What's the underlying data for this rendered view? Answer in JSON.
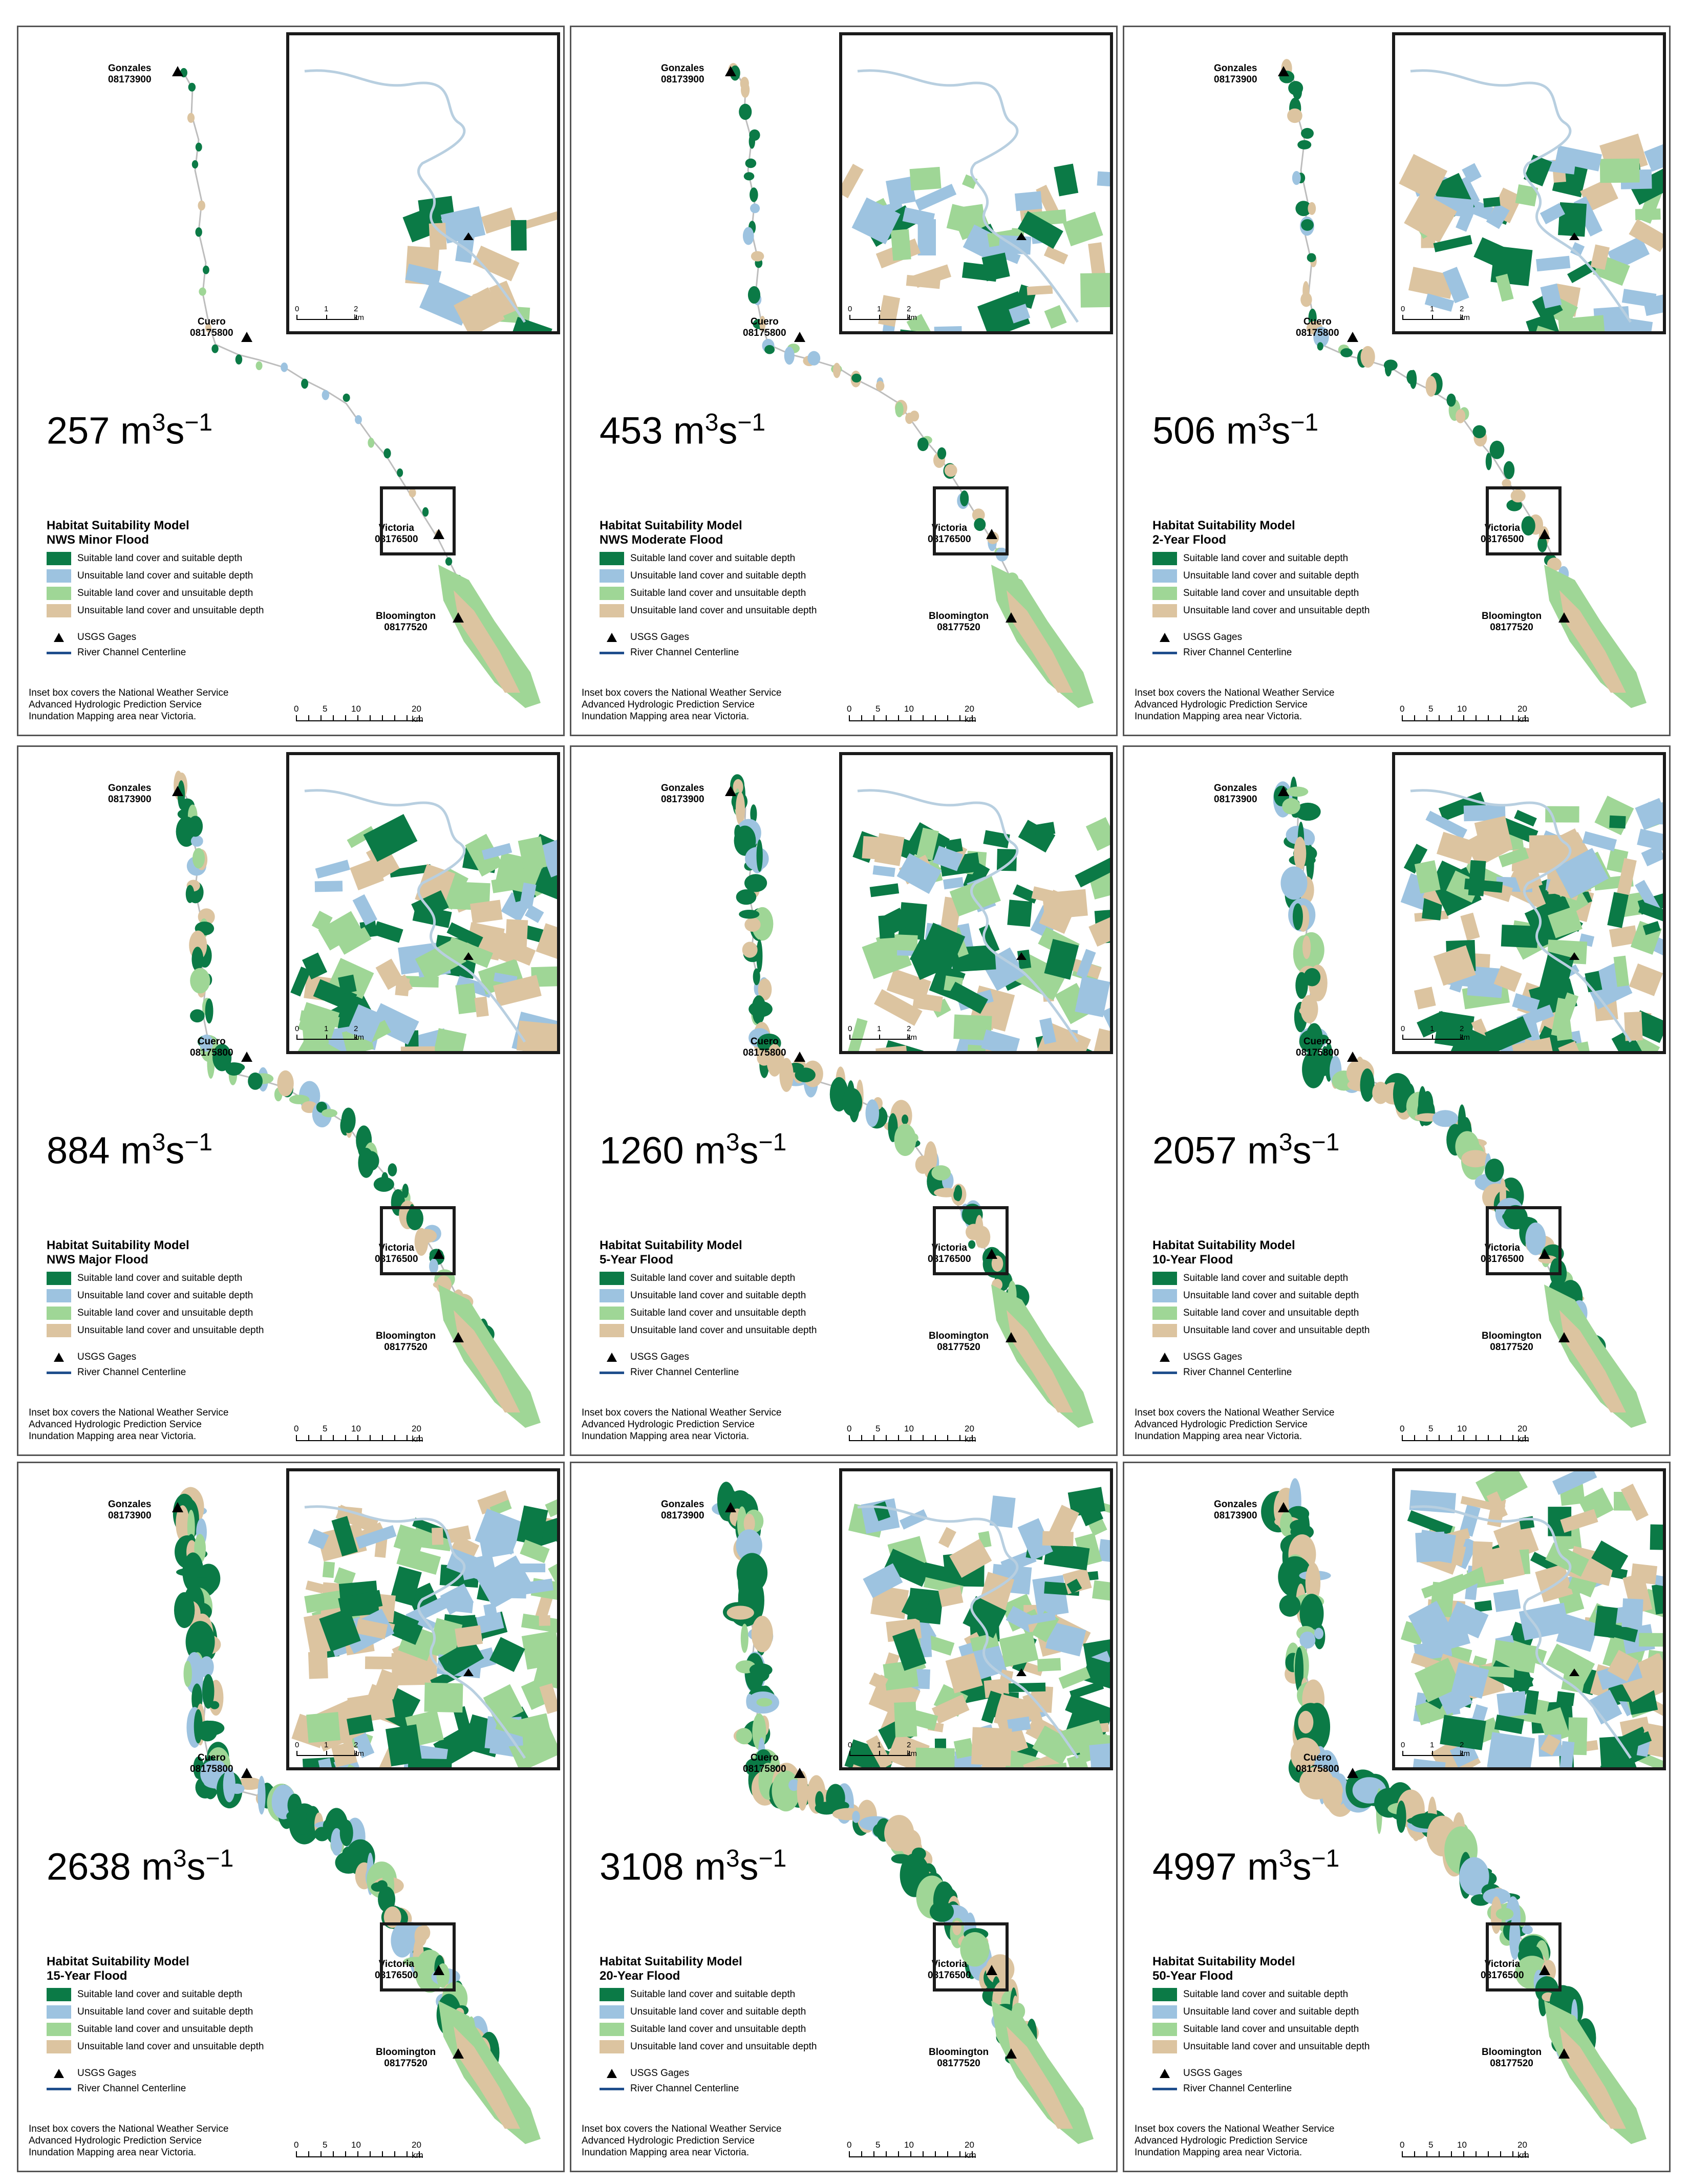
{
  "colors": {
    "suitable_suitable": "#0b7a46",
    "unsuitable_suitable": "#9dc3e0",
    "suitable_unsuitable": "#9fd696",
    "unsuitable_unsuitable": "#dcc4a0",
    "river": "#1f4e8c"
  },
  "gages": {
    "gonzales": {
      "name": "Gonzales",
      "id": "08173900"
    },
    "cuero": {
      "name": "Cuero",
      "id": "08175800"
    },
    "victoria": {
      "name": "Victoria",
      "id": "08176500"
    },
    "bloomington": {
      "name": "Bloomington",
      "id": "08177520"
    }
  },
  "legend": {
    "title": "Habitat Suitability Model",
    "items": [
      {
        "label": "Suitable land cover and suitable depth",
        "color_key": "suitable_suitable"
      },
      {
        "label": "Unsuitable land cover and suitable depth",
        "color_key": "unsuitable_suitable"
      },
      {
        "label": "Suitable land cover and unsuitable depth",
        "color_key": "suitable_unsuitable"
      },
      {
        "label": "Unsuitable land cover and unsuitable depth",
        "color_key": "unsuitable_unsuitable"
      }
    ],
    "gages_label": "USGS Gages",
    "river_label": "River Channel Centerline"
  },
  "note": [
    "Inset box covers the National Weather Service",
    "Advanced Hydrologic Prediction Service",
    "Inundation Mapping area near Victoria."
  ],
  "scale_main": {
    "ticks": [
      "0",
      "5",
      "10",
      "20 km"
    ]
  },
  "scale_inset": {
    "ticks": [
      "0",
      "1",
      "2 km"
    ]
  },
  "panels": [
    {
      "flow": "257",
      "unit": "m",
      "exp1": "3",
      "unit2": "s",
      "exp2": "−1",
      "scenario": "NWS Minor Flood",
      "level": 0.05
    },
    {
      "flow": "453",
      "unit": "m",
      "exp1": "3",
      "unit2": "s",
      "exp2": "−1",
      "scenario": "NWS Moderate Flood",
      "level": 0.25
    },
    {
      "flow": "506",
      "unit": "m",
      "exp1": "3",
      "unit2": "s",
      "exp2": "−1",
      "scenario": "2-Year Flood",
      "level": 0.35
    },
    {
      "flow": "884",
      "unit": "m",
      "exp1": "3",
      "unit2": "s",
      "exp2": "−1",
      "scenario": "NWS Major Flood",
      "level": 0.55
    },
    {
      "flow": "1260",
      "unit": "m",
      "exp1": "3",
      "unit2": "s",
      "exp2": "−1",
      "scenario": "5-Year Flood",
      "level": 0.65
    },
    {
      "flow": "2057",
      "unit": "m",
      "exp1": "3",
      "unit2": "s",
      "exp2": "−1",
      "scenario": "10-Year Flood",
      "level": 0.8
    },
    {
      "flow": "2638",
      "unit": "m",
      "exp1": "3",
      "unit2": "s",
      "exp2": "−1",
      "scenario": "15-Year Flood",
      "level": 0.88
    },
    {
      "flow": "3108",
      "unit": "m",
      "exp1": "3",
      "unit2": "s",
      "exp2": "−1",
      "scenario": "20-Year Flood",
      "level": 0.93
    },
    {
      "flow": "4997",
      "unit": "m",
      "exp1": "3",
      "unit2": "s",
      "exp2": "−1",
      "scenario": "50-Year Flood",
      "level": 1.0
    }
  ]
}
